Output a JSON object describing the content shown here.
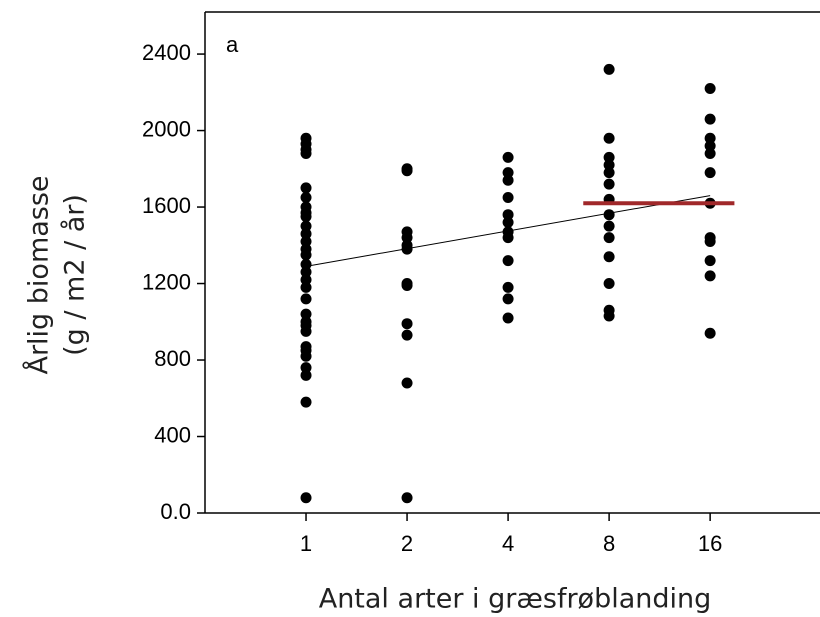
{
  "chart_data": {
    "type": "scatter",
    "panel_label": "a",
    "x_label": "Antal arter i græsfrøblanding",
    "y_label": [
      "Årlig biomasse",
      "(g / m2 / år)"
    ],
    "log_x_base": 2,
    "xlim": [
      0.5,
      34
    ],
    "xticks": [
      1,
      2,
      4,
      8,
      16
    ],
    "ylim": [
      0,
      2620
    ],
    "yticks": [
      {
        "value": 0,
        "label": "0.0"
      },
      400,
      800,
      1200,
      1600,
      2000,
      2400
    ],
    "series": [
      {
        "color": "#000000",
        "x": [
          1,
          1,
          1,
          1,
          1,
          1,
          1,
          1,
          1,
          1,
          1,
          1,
          1,
          1,
          1,
          1,
          1,
          1,
          1,
          1,
          1,
          1,
          1,
          1,
          1,
          1,
          1,
          1,
          1,
          1,
          2,
          2,
          2,
          2,
          2,
          2,
          2,
          2,
          2,
          2,
          2,
          2,
          4,
          4,
          4,
          4,
          4,
          4,
          4,
          4,
          4,
          4,
          4,
          4,
          8,
          8,
          8,
          8,
          8,
          8,
          8,
          8,
          8,
          8,
          8,
          8,
          8,
          8,
          16,
          16,
          16,
          16,
          16,
          16,
          16,
          16,
          16,
          16,
          16,
          16
        ],
        "values": [
          1960,
          1930,
          1900,
          1880,
          1700,
          1650,
          1600,
          1570,
          1550,
          1500,
          1460,
          1420,
          1380,
          1350,
          1300,
          1260,
          1220,
          1180,
          1120,
          1040,
          1000,
          980,
          950,
          870,
          850,
          820,
          760,
          720,
          580,
          80,
          1800,
          1790,
          1470,
          1440,
          1400,
          1380,
          1200,
          1190,
          990,
          930,
          680,
          80,
          1860,
          1780,
          1740,
          1650,
          1560,
          1520,
          1470,
          1440,
          1320,
          1180,
          1120,
          1020,
          2320,
          1960,
          1860,
          1820,
          1780,
          1720,
          1640,
          1560,
          1500,
          1440,
          1340,
          1200,
          1060,
          1030,
          2220,
          2060,
          1960,
          1920,
          1880,
          1780,
          1620,
          1440,
          1420,
          1320,
          1240,
          940
        ]
      }
    ],
    "trend_line": {
      "x": [
        1,
        16
      ],
      "values": [
        1290,
        1660
      ],
      "color": "#000000"
    },
    "reference_line": {
      "x": [
        6.7,
        18.9
      ],
      "value": 1620,
      "color": "#a0282a"
    }
  }
}
